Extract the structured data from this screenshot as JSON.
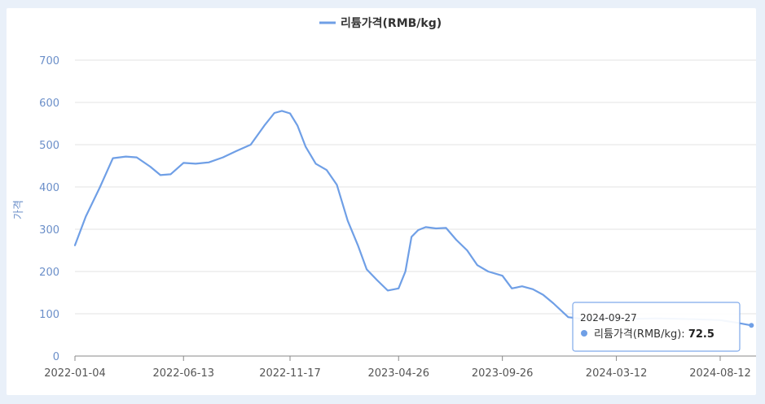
{
  "chart_data": {
    "type": "line",
    "series": [
      {
        "name": "리튬가격(RMB/kg)",
        "color": "#6f9fe6",
        "x": [
          "2022-01-04",
          "2022-01-20",
          "2022-02-10",
          "2022-03-01",
          "2022-03-20",
          "2022-04-05",
          "2022-04-25",
          "2022-05-10",
          "2022-05-25",
          "2022-06-13",
          "2022-07-01",
          "2022-07-20",
          "2022-08-10",
          "2022-08-30",
          "2022-09-20",
          "2022-10-10",
          "2022-10-25",
          "2022-11-05",
          "2022-11-17",
          "2022-11-28",
          "2022-12-10",
          "2022-12-25",
          "2023-01-10",
          "2023-01-25",
          "2023-02-10",
          "2023-02-25",
          "2023-03-10",
          "2023-03-25",
          "2023-04-10",
          "2023-04-26",
          "2023-05-06",
          "2023-05-15",
          "2023-05-25",
          "2023-06-05",
          "2023-06-20",
          "2023-07-05",
          "2023-07-20",
          "2023-08-05",
          "2023-08-20",
          "2023-09-05",
          "2023-09-26",
          "2023-10-10",
          "2023-10-25",
          "2023-11-10",
          "2023-11-25",
          "2023-12-10",
          "2024-01-01",
          "2024-01-20",
          "2024-02-10",
          "2024-03-12",
          "2024-04-10",
          "2024-05-10",
          "2024-06-10",
          "2024-07-10",
          "2024-08-12",
          "2024-09-05",
          "2024-09-27"
        ],
        "values": [
          262,
          330,
          400,
          468,
          472,
          470,
          448,
          428,
          430,
          457,
          455,
          458,
          470,
          485,
          500,
          545,
          575,
          580,
          574,
          545,
          495,
          455,
          440,
          405,
          320,
          262,
          205,
          180,
          155,
          160,
          200,
          282,
          298,
          305,
          302,
          303,
          275,
          250,
          215,
          200,
          190,
          160,
          165,
          158,
          145,
          125,
          92,
          88,
          88,
          88,
          88,
          89,
          88,
          87,
          85,
          79,
          72.5
        ]
      }
    ],
    "xticks": [
      "2022-01-04",
      "2022-06-13",
      "2022-11-17",
      "2023-04-26",
      "2023-09-26",
      "2024-03-12",
      "2024-08-12"
    ],
    "yticks": [
      0,
      100,
      200,
      300,
      400,
      500,
      600,
      700
    ],
    "ylim": [
      0,
      700
    ],
    "ylabel": "가격",
    "legend": "top-center",
    "grid": true
  },
  "legend_label": "리튬가격(RMB/kg)",
  "tooltip": {
    "date": "2024-09-27",
    "series": "리튬가격(RMB/kg): ",
    "value": "72.5"
  }
}
